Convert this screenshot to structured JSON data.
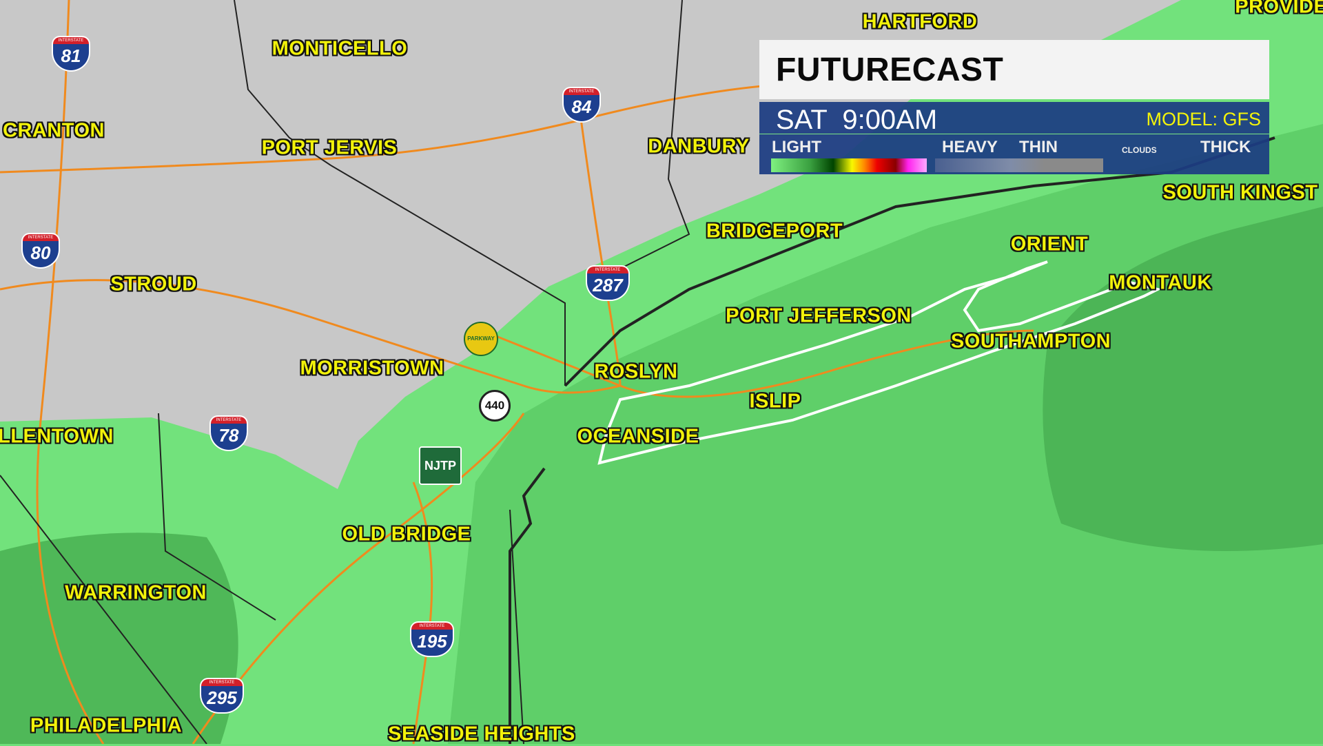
{
  "legend": {
    "title": "FUTURECAST",
    "time": "SAT  9:00AM",
    "model": "MODEL: GFS",
    "precip_low": "LIGHT",
    "precip_high": "HEAVY",
    "cloud_low": "THIN",
    "cloud_label": "CLOUDS",
    "cloud_high": "THICK"
  },
  "colors": {
    "land_clear": "#c9c9c9",
    "rain_light": "#72e27c",
    "rain_mid": "#5ccc66",
    "rain_dark": "#45a84e",
    "label": "#f2f20a",
    "panel": "#1c3c82"
  },
  "cities": [
    "HARTFORD",
    "PROVIDEN",
    "MONTICELLO",
    "CRANTON",
    "PORT JERVIS",
    "DANBURY",
    "SOUTH KINGST",
    "BRIDGEPORT",
    "ORIENT",
    "MONTAUK",
    "STROUD",
    "PORT JEFFERSON",
    "SOUTHAMPTON",
    "MORRISTOWN",
    "ROSLYN",
    "ISLIP",
    "LLENTOWN",
    "OCEANSIDE",
    "OLD BRIDGE",
    "WARRINGTON",
    "PHILADELPHIA",
    "SEASIDE HEIGHTS"
  ],
  "shields": {
    "i81": "81",
    "i84": "84",
    "i80": "80",
    "i287": "287",
    "i78": "78",
    "i195": "195",
    "i295": "295",
    "interstate": "INTERSTATE",
    "parkway": "PARKWAY",
    "r440": "440",
    "njtp": "NJTP"
  }
}
